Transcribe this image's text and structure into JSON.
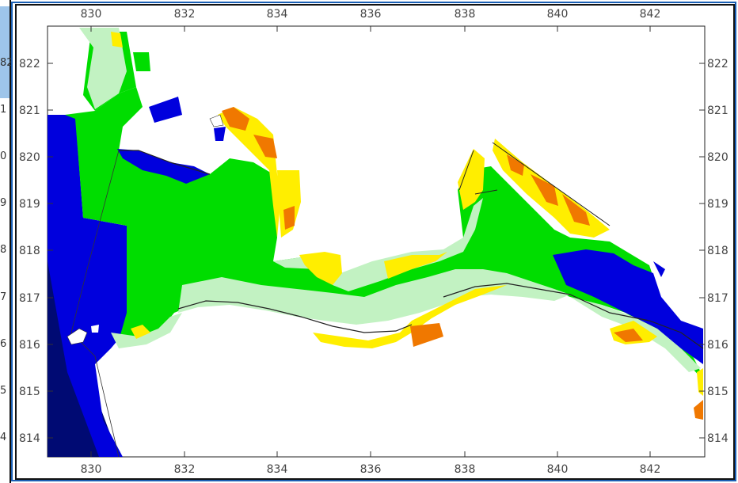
{
  "map": {
    "x_ticks": [
      "830",
      "832",
      "834",
      "836",
      "838",
      "840",
      "842"
    ],
    "y_ticks": [
      "822",
      "821",
      "820",
      "819",
      "818",
      "817",
      "816",
      "815",
      "814"
    ],
    "left_edge_labels": [
      "82",
      "1",
      "0",
      "9",
      "8",
      "7",
      "6",
      "5",
      "4"
    ],
    "colors": {
      "deep": "#000a73",
      "blue": "#0000dd",
      "green": "#00dd00",
      "light_green": "#c2f2c2",
      "yellow": "#ffee00",
      "orange": "#f07800",
      "land": "#ffffff"
    }
  }
}
